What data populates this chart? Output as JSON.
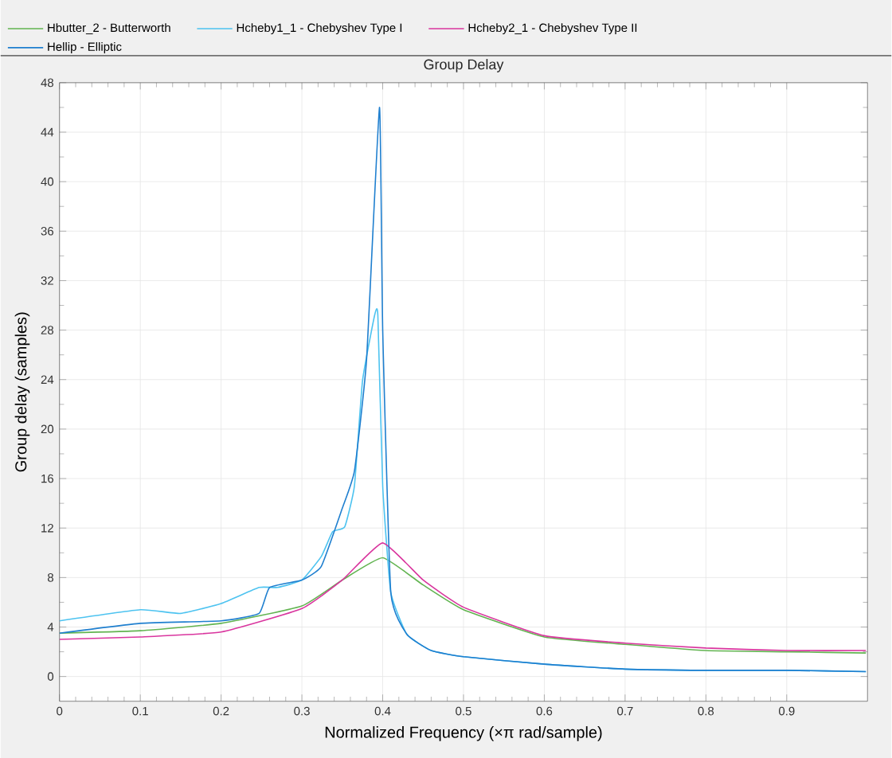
{
  "chart_data": {
    "type": "line",
    "title": "Group Delay",
    "xlabel": "Normalized Frequency (×π rad/sample)",
    "ylabel": "Group delay (samples)",
    "xlim": [
      0,
      1
    ],
    "ylim": [
      -2,
      48
    ],
    "xticks": [
      0,
      0.1,
      0.2,
      0.3,
      0.4,
      0.5,
      0.6,
      0.7,
      0.8,
      0.9
    ],
    "yticks": [
      0,
      4,
      8,
      12,
      16,
      20,
      24,
      28,
      32,
      36,
      40,
      44,
      48
    ],
    "grid": true,
    "legend": "top",
    "marker": "none",
    "line_style": "solid",
    "series": [
      {
        "name": "Hbutter_2 - Butterworth",
        "color": "#62b451",
        "x": [
          0,
          0.1,
          0.2,
          0.3,
          0.35,
          0.4,
          0.45,
          0.5,
          0.6,
          0.7,
          0.8,
          0.9,
          0.998
        ],
        "values": [
          3.5,
          3.7,
          4.3,
          5.7,
          7.8,
          9.6,
          7.4,
          5.4,
          3.2,
          2.6,
          2.1,
          2.0,
          1.9
        ]
      },
      {
        "name": "Hcheby1_1 - Chebyshev Type I",
        "color": "#4dc3f0",
        "x": [
          0,
          0.1,
          0.15,
          0.2,
          0.247,
          0.27,
          0.3,
          0.324,
          0.338,
          0.353,
          0.365,
          0.375,
          0.39,
          0.394,
          0.4,
          0.41,
          0.43,
          0.46,
          0.5,
          0.6,
          0.7,
          0.8,
          0.9,
          0.998
        ],
        "values": [
          4.5,
          5.4,
          5.1,
          5.9,
          7.2,
          7.2,
          7.8,
          9.7,
          11.7,
          12.1,
          15.4,
          23.9,
          29.2,
          29.2,
          15.4,
          6.8,
          3.4,
          2.1,
          1.6,
          1.0,
          0.6,
          0.5,
          0.5,
          0.4
        ]
      },
      {
        "name": "Hcheby2_1 - Chebyshev Type II",
        "color": "#d9359e",
        "x": [
          0,
          0.1,
          0.2,
          0.3,
          0.35,
          0.4,
          0.45,
          0.5,
          0.6,
          0.7,
          0.8,
          0.9,
          0.998
        ],
        "values": [
          3.0,
          3.2,
          3.6,
          5.5,
          7.8,
          10.8,
          7.8,
          5.6,
          3.3,
          2.7,
          2.3,
          2.1,
          2.1
        ]
      },
      {
        "name": "Hellip - Elliptic",
        "color": "#1f7fcf",
        "x": [
          0,
          0.1,
          0.2,
          0.247,
          0.26,
          0.3,
          0.324,
          0.35,
          0.365,
          0.38,
          0.396,
          0.4,
          0.41,
          0.43,
          0.46,
          0.5,
          0.6,
          0.7,
          0.8,
          0.9,
          0.998
        ],
        "values": [
          3.5,
          4.3,
          4.5,
          5.1,
          7.2,
          7.8,
          8.9,
          13.6,
          16.6,
          25.6,
          46,
          28,
          6.8,
          3.4,
          2.1,
          1.6,
          1.0,
          0.6,
          0.5,
          0.5,
          0.4
        ]
      }
    ]
  }
}
